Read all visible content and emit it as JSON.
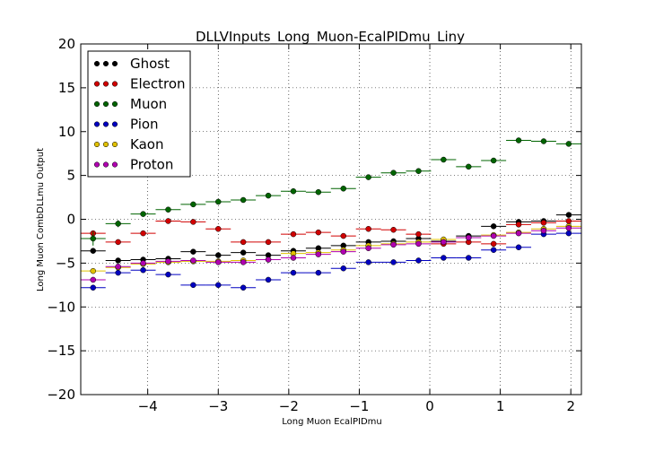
{
  "chart_data": {
    "type": "scatter",
    "title": "DLLVInputs_Long_Muon-EcalPIDmu_Liny",
    "xlabel": "Long Muon EcalPIDmu",
    "ylabel": "Long Muon CombDLLmu Output",
    "xlim": [
      -4.95,
      2.15
    ],
    "ylim": [
      -20,
      20
    ],
    "xticks": [
      -4,
      -3,
      -2,
      -1,
      0,
      1,
      2
    ],
    "yticks": [
      -20,
      -15,
      -10,
      -5,
      0,
      5,
      10,
      15,
      20
    ],
    "xtick_labels": [
      "−4",
      "−3",
      "−2",
      "−1",
      "0",
      "1",
      "2"
    ],
    "ytick_labels": [
      "−20",
      "−15",
      "−10",
      "−5",
      "0",
      "5",
      "10",
      "15",
      "20"
    ],
    "bin_half_width": 0.178,
    "legend_position": "top-left",
    "series": [
      {
        "name": "Ghost",
        "color": "#000000",
        "x": [
          -4.775,
          -4.42,
          -4.065,
          -3.71,
          -3.355,
          -3.0,
          -2.645,
          -2.29,
          -1.935,
          -1.58,
          -1.225,
          -0.87,
          -0.515,
          -0.16,
          0.195,
          0.55,
          0.905,
          1.26,
          1.615,
          1.97
        ],
        "y": [
          -3.6,
          -4.7,
          -4.6,
          -4.5,
          -3.7,
          -4.1,
          -3.8,
          -4.1,
          -3.6,
          -3.3,
          -3.0,
          -2.6,
          -2.5,
          -2.2,
          -2.5,
          -1.9,
          -0.8,
          -0.3,
          -0.2,
          0.5
        ]
      },
      {
        "name": "Electron",
        "color": "#d00000",
        "x": [
          -4.775,
          -4.42,
          -4.065,
          -3.71,
          -3.355,
          -3.0,
          -2.645,
          -2.29,
          -1.935,
          -1.58,
          -1.225,
          -0.87,
          -0.515,
          -0.16,
          0.195,
          0.55,
          0.905,
          1.26,
          1.615,
          1.97
        ],
        "y": [
          -1.6,
          -2.6,
          -1.6,
          -0.2,
          -0.3,
          -1.1,
          -2.6,
          -2.6,
          -1.7,
          -1.5,
          -1.9,
          -1.1,
          -1.2,
          -1.7,
          -2.8,
          -2.6,
          -2.8,
          -0.6,
          -0.4,
          -0.2
        ]
      },
      {
        "name": "Muon",
        "color": "#006400",
        "x": [
          -4.775,
          -4.42,
          -4.065,
          -3.71,
          -3.355,
          -3.0,
          -2.645,
          -2.29,
          -1.935,
          -1.58,
          -1.225,
          -0.87,
          -0.515,
          -0.16,
          0.195,
          0.55,
          0.905,
          1.26,
          1.615,
          1.97
        ],
        "y": [
          -2.2,
          -0.5,
          0.6,
          1.1,
          1.7,
          2.0,
          2.2,
          2.7,
          3.2,
          3.1,
          3.5,
          4.8,
          5.3,
          5.5,
          6.8,
          6.0,
          6.7,
          9.0,
          8.9,
          8.6
        ],
        "yerr": [
          0.8,
          0.4,
          0.3,
          0.2,
          0.2,
          0.2,
          0.2,
          0.2,
          0.2,
          0.2,
          0.2,
          0.2,
          0.2,
          0.2,
          0.2,
          0.2,
          0.2,
          0.2,
          0.2,
          0.2
        ]
      },
      {
        "name": "Pion",
        "color": "#0000c0",
        "x": [
          -4.775,
          -4.42,
          -4.065,
          -3.71,
          -3.355,
          -3.0,
          -2.645,
          -2.29,
          -1.935,
          -1.58,
          -1.225,
          -0.87,
          -0.515,
          -0.16,
          0.195,
          0.55,
          0.905,
          1.26,
          1.615,
          1.97
        ],
        "y": [
          -7.8,
          -6.1,
          -5.8,
          -6.3,
          -7.5,
          -7.5,
          -7.8,
          -6.9,
          -6.1,
          -6.1,
          -5.6,
          -4.9,
          -4.9,
          -4.7,
          -4.4,
          -4.4,
          -3.5,
          -3.2,
          -1.7,
          -1.6
        ]
      },
      {
        "name": "Kaon",
        "color": "#e0c000",
        "x": [
          -4.775,
          -4.42,
          -4.065,
          -3.71,
          -3.355,
          -3.0,
          -2.645,
          -2.29,
          -1.935,
          -1.58,
          -1.225,
          -0.87,
          -0.515,
          -0.16,
          0.195,
          0.55,
          0.905,
          1.26,
          1.615,
          1.97
        ],
        "y": [
          -5.9,
          -5.5,
          -5.1,
          -4.9,
          -4.8,
          -4.8,
          -4.7,
          -4.6,
          -3.9,
          -3.8,
          -3.5,
          -3.0,
          -2.8,
          -2.6,
          -2.3,
          -2.1,
          -1.8,
          -1.5,
          -1.1,
          -0.8
        ]
      },
      {
        "name": "Proton",
        "color": "#b000b0",
        "x": [
          -4.775,
          -4.42,
          -4.065,
          -3.71,
          -3.355,
          -3.0,
          -2.645,
          -2.29,
          -1.935,
          -1.58,
          -1.225,
          -0.87,
          -0.515,
          -0.16,
          0.195,
          0.55,
          0.905,
          1.26,
          1.615,
          1.97
        ],
        "y": [
          -6.9,
          -5.4,
          -5.0,
          -4.8,
          -4.7,
          -4.9,
          -4.9,
          -4.6,
          -4.4,
          -4.0,
          -3.7,
          -3.3,
          -2.9,
          -2.8,
          -2.6,
          -2.1,
          -1.9,
          -1.6,
          -1.3,
          -1.0
        ]
      }
    ]
  }
}
